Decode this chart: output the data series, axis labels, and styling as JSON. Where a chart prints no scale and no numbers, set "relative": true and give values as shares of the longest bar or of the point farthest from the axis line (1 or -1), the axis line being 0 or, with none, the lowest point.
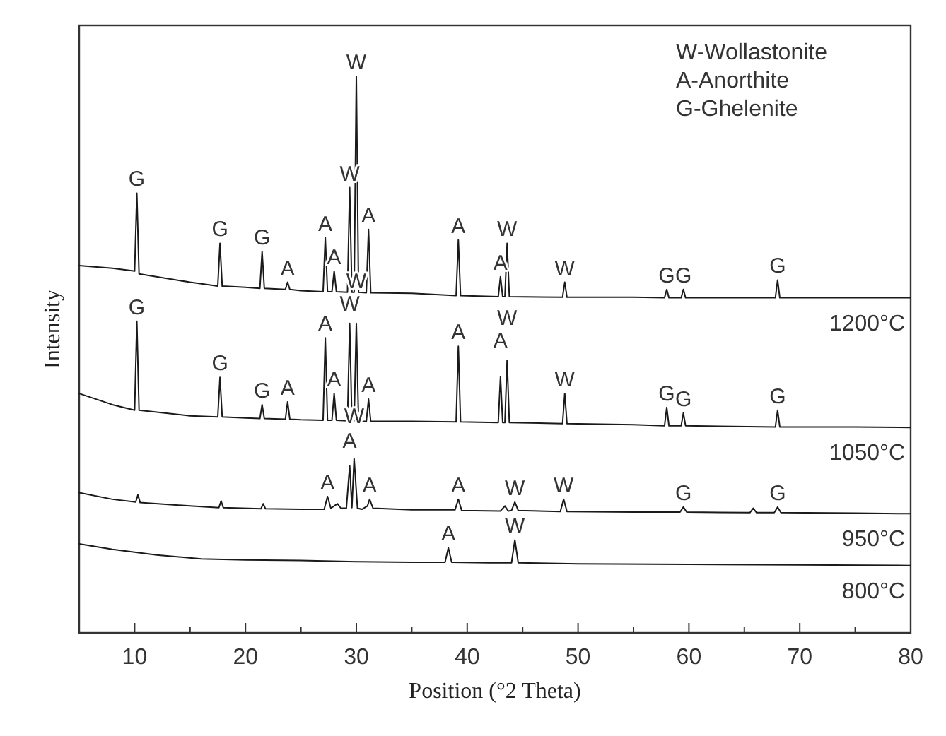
{
  "chart_data": {
    "type": "line",
    "relative": true,
    "xlabel": "Position (°2 Theta)",
    "ylabel": "Intensity",
    "xlim": [
      5,
      80
    ],
    "xticks": [
      10,
      {
        "value": 15,
        "label": null
      },
      20,
      {
        "value": 25,
        "label": null
      },
      30,
      {
        "value": 35,
        "label": null
      },
      40,
      {
        "value": 45,
        "label": null
      },
      50,
      {
        "value": 55,
        "label": null
      },
      60,
      {
        "value": 65,
        "label": null
      },
      70,
      {
        "value": 75,
        "label": null
      },
      80
    ],
    "tick_labels": "x",
    "grid": false,
    "marker": "none",
    "line_style": "solid",
    "series": [
      {
        "name": "1200°C",
        "color": "#1a1a1a",
        "x": [
          5,
          8,
          10.0,
          10.2,
          10.4,
          15,
          17.5,
          17.7,
          17.9,
          20,
          21.3,
          21.5,
          21.7,
          23.6,
          23.8,
          24.0,
          25,
          27.0,
          27.2,
          27.4,
          27.8,
          28.0,
          28.2,
          29.2,
          29.4,
          29.6,
          29.8,
          30.0,
          30.2,
          30.9,
          31.1,
          31.3,
          35,
          39.0,
          39.2,
          39.4,
          42.8,
          43.0,
          43.2,
          43.4,
          43.6,
          43.8,
          48.6,
          48.8,
          49.0,
          55,
          57.8,
          58.0,
          58.2,
          59.3,
          59.5,
          59.7,
          67.8,
          68.0,
          68.2,
          75,
          80
        ],
        "values": [
          0.66,
          0.655,
          0.65,
          0.79,
          0.645,
          0.63,
          0.623,
          0.7,
          0.623,
          0.621,
          0.619,
          0.685,
          0.619,
          0.617,
          0.63,
          0.617,
          0.615,
          0.613,
          0.71,
          0.613,
          0.613,
          0.65,
          0.613,
          0.612,
          0.8,
          0.612,
          0.612,
          1.0,
          0.612,
          0.611,
          0.725,
          0.611,
          0.61,
          0.606,
          0.706,
          0.606,
          0.604,
          0.64,
          0.604,
          0.604,
          0.7,
          0.604,
          0.603,
          0.63,
          0.603,
          0.603,
          0.602,
          0.617,
          0.602,
          0.602,
          0.617,
          0.602,
          0.602,
          0.634,
          0.602,
          0.602,
          0.602
        ]
      },
      {
        "name": "1050°C",
        "color": "#1a1a1a",
        "x": [
          5,
          8,
          10.0,
          10.2,
          10.4,
          15,
          17.5,
          17.7,
          17.9,
          20,
          21.3,
          21.5,
          21.7,
          23.6,
          23.8,
          24.0,
          25,
          27.0,
          27.2,
          27.4,
          27.8,
          28.0,
          28.2,
          29.2,
          29.4,
          29.6,
          29.8,
          30.0,
          30.2,
          30.9,
          31.1,
          31.3,
          35,
          39.0,
          39.2,
          39.4,
          42.8,
          43.0,
          43.2,
          43.4,
          43.6,
          43.8,
          48.6,
          48.8,
          49.0,
          55,
          57.8,
          58.0,
          58.2,
          59.3,
          59.5,
          59.7,
          67.8,
          68.0,
          68.2,
          75,
          80
        ],
        "values": [
          0.43,
          0.41,
          0.4,
          0.56,
          0.4,
          0.39,
          0.388,
          0.459,
          0.388,
          0.386,
          0.385,
          0.41,
          0.385,
          0.384,
          0.415,
          0.384,
          0.383,
          0.382,
          0.53,
          0.382,
          0.382,
          0.43,
          0.382,
          0.381,
          0.556,
          0.381,
          0.381,
          0.556,
          0.38,
          0.38,
          0.42,
          0.38,
          0.38,
          0.379,
          0.515,
          0.379,
          0.378,
          0.46,
          0.378,
          0.378,
          0.49,
          0.378,
          0.376,
          0.43,
          0.376,
          0.374,
          0.372,
          0.405,
          0.372,
          0.372,
          0.395,
          0.372,
          0.37,
          0.4,
          0.37,
          0.37,
          0.369
        ]
      },
      {
        "name": "950°C",
        "color": "#1a1a1a",
        "x": [
          5,
          8,
          10.1,
          10.3,
          10.5,
          15,
          17.6,
          17.8,
          18,
          21.4,
          21.6,
          21.8,
          25,
          27.1,
          27.4,
          27.7,
          28,
          28.3,
          28.6,
          29.1,
          29.4,
          29.6,
          29.8,
          30.1,
          30.5,
          31.0,
          31.2,
          31.5,
          35,
          38.9,
          39.2,
          39.5,
          43,
          43.4,
          43.7,
          44.0,
          44.3,
          44.6,
          48.4,
          48.7,
          49,
          55,
          59.2,
          59.5,
          59.8,
          65.5,
          65.8,
          66.1,
          67.7,
          68,
          68.3,
          75,
          80
        ],
        "values": [
          0.252,
          0.24,
          0.235,
          0.248,
          0.234,
          0.228,
          0.225,
          0.237,
          0.225,
          0.223,
          0.232,
          0.223,
          0.222,
          0.222,
          0.245,
          0.224,
          0.228,
          0.232,
          0.224,
          0.224,
          0.3,
          0.225,
          0.313,
          0.224,
          0.222,
          0.228,
          0.24,
          0.224,
          0.221,
          0.221,
          0.24,
          0.22,
          0.219,
          0.228,
          0.219,
          0.22,
          0.235,
          0.22,
          0.218,
          0.24,
          0.218,
          0.217,
          0.217,
          0.226,
          0.217,
          0.216,
          0.224,
          0.216,
          0.216,
          0.226,
          0.216,
          0.215,
          0.214
        ]
      },
      {
        "name": "800°C",
        "color": "#1a1a1a",
        "x": [
          5,
          8,
          12,
          16,
          20,
          25,
          30,
          35,
          38.0,
          38.3,
          38.6,
          42,
          44.0,
          44.3,
          44.6,
          50,
          60,
          70,
          80
        ],
        "values": [
          0.16,
          0.15,
          0.14,
          0.133,
          0.131,
          0.13,
          0.128,
          0.127,
          0.127,
          0.153,
          0.127,
          0.126,
          0.126,
          0.167,
          0.126,
          0.124,
          0.123,
          0.122,
          0.121
        ]
      }
    ],
    "annotations": [
      "W-Wollastonite",
      "A-Anorthite",
      "G-Ghelenite",
      {
        "text": "G",
        "x": 10.2,
        "y": 0.79
      },
      {
        "text": "G",
        "x": 17.7,
        "y": 0.7
      },
      {
        "text": "G",
        "x": 21.5,
        "y": 0.685
      },
      {
        "text": "A",
        "x": 23.8,
        "y": 0.63
      },
      {
        "text": "A",
        "x": 27.2,
        "y": 0.71
      },
      {
        "text": "A",
        "x": 28.0,
        "y": 0.65
      },
      {
        "text": "W",
        "x": 29.4,
        "y": 0.8
      },
      {
        "text": "W",
        "x": 30.0,
        "y": 1.0
      },
      {
        "text": "A",
        "x": 31.1,
        "y": 0.725
      },
      {
        "text": "A",
        "x": 39.2,
        "y": 0.706
      },
      {
        "text": "A",
        "x": 43.0,
        "y": 0.64
      },
      {
        "text": "W",
        "x": 43.6,
        "y": 0.7
      },
      {
        "text": "W",
        "x": 48.8,
        "y": 0.63
      },
      {
        "text": "G",
        "x": 58.0,
        "y": 0.617
      },
      {
        "text": "G",
        "x": 59.5,
        "y": 0.617
      },
      {
        "text": "G",
        "x": 68.0,
        "y": 0.634
      },
      {
        "text": "G",
        "x": 10.2,
        "y": 0.56
      },
      {
        "text": "G",
        "x": 17.7,
        "y": 0.459
      },
      {
        "text": "G",
        "x": 21.5,
        "y": 0.41
      },
      {
        "text": "A",
        "x": 23.8,
        "y": 0.415
      },
      {
        "text": "A",
        "x": 27.2,
        "y": 0.53
      },
      {
        "text": "A",
        "x": 28.0,
        "y": 0.43
      },
      {
        "text": "W",
        "x": 29.4,
        "y": 0.556
      },
      {
        "text": "W",
        "x": 30.0,
        "y": 0.556
      },
      {
        "text": "A",
        "x": 31.1,
        "y": 0.42
      },
      {
        "text": "A",
        "x": 39.2,
        "y": 0.515
      },
      {
        "text": "A",
        "x": 43.0,
        "y": 0.46
      },
      {
        "text": "W",
        "x": 43.6,
        "y": 0.49
      },
      {
        "text": "W",
        "x": 48.8,
        "y": 0.43
      },
      {
        "text": "G",
        "x": 58.0,
        "y": 0.405
      },
      {
        "text": "G",
        "x": 59.5,
        "y": 0.395
      },
      {
        "text": "G",
        "x": 68.0,
        "y": 0.4
      },
      {
        "text": "A",
        "x": 27.4,
        "y": 0.245
      },
      {
        "text": "A",
        "x": 29.4,
        "y": 0.3
      },
      {
        "text": "W",
        "x": 29.8,
        "y": 0.313
      },
      {
        "text": "A",
        "x": 31.2,
        "y": 0.24
      },
      {
        "text": "A",
        "x": 39.2,
        "y": 0.24
      },
      {
        "text": "W",
        "x": 44.3,
        "y": 0.235
      },
      {
        "text": "W",
        "x": 48.7,
        "y": 0.24
      },
      {
        "text": "G",
        "x": 59.5,
        "y": 0.226
      },
      {
        "text": "G",
        "x": 68.0,
        "y": 0.226
      },
      {
        "text": "A",
        "x": 38.3,
        "y": 0.153
      },
      {
        "text": "W",
        "x": 44.3,
        "y": 0.167
      }
    ]
  }
}
